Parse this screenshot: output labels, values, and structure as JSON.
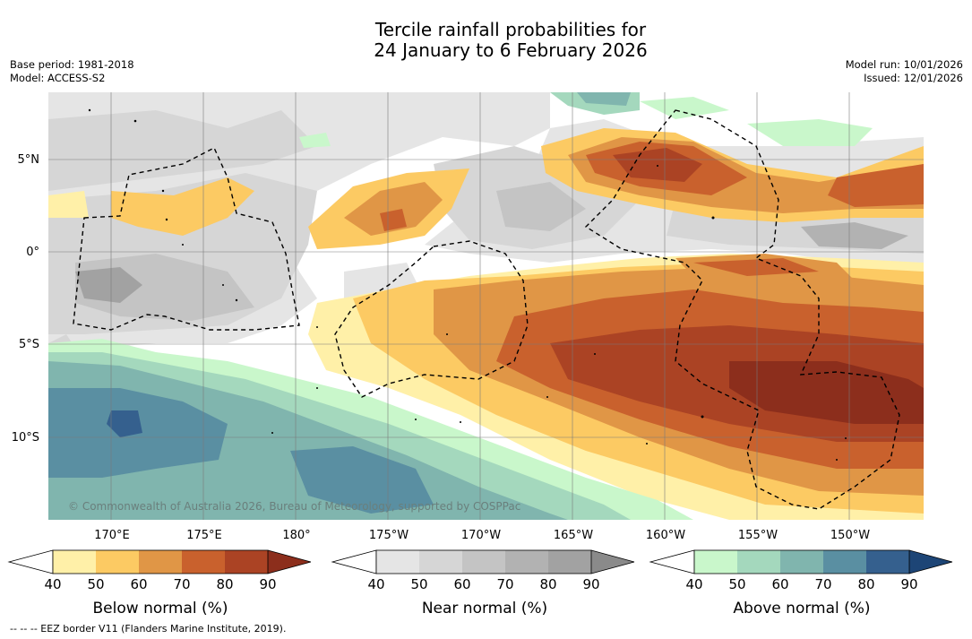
{
  "title": {
    "line1": "Tercile rainfall probabilities for",
    "line2": "24 January to 6 February 2026"
  },
  "meta": {
    "base_period": "Base period: 1981-2018",
    "model": "Model: ACCESS-S2",
    "model_run": "Model run: 10/01/2026",
    "issued": "Issued: 12/01/2026"
  },
  "map": {
    "lat_labels": [
      "5°N",
      "0°",
      "5°S",
      "10°S"
    ],
    "lon_labels": [
      "170°E",
      "175°E",
      "180°",
      "175°W",
      "170°W",
      "165°W",
      "160°W",
      "155°W",
      "150°W"
    ],
    "copyright": "© Commonwealth of Australia 2026, Bureau of Meteorology, supported by COSPPac",
    "colors": {
      "below": [
        "#fff0a8",
        "#fcca63",
        "#e09646",
        "#c9612d",
        "#ab4324",
        "#8c2e1c"
      ],
      "near": [
        "#e5e5e5",
        "#d6d6d6",
        "#c4c4c4",
        "#b2b2b2",
        "#a2a2a2",
        "#8a8a8a"
      ],
      "above": [
        "#c9f7cb",
        "#a4d8bd",
        "#80b5ae",
        "#5a8fa2",
        "#35608e",
        "#1d4576"
      ]
    }
  },
  "legends": {
    "below": {
      "title": "Below normal (%)",
      "ticks": [
        "40",
        "50",
        "60",
        "70",
        "80",
        "90"
      ]
    },
    "near": {
      "title": "Near normal (%)",
      "ticks": [
        "40",
        "50",
        "60",
        "70",
        "80",
        "90"
      ]
    },
    "above": {
      "title": "Above normal (%)",
      "ticks": [
        "40",
        "50",
        "60",
        "70",
        "80",
        "90"
      ]
    }
  },
  "footnote": "--  --  -- EEZ border V11 (Flanders Marine Institute, 2019)."
}
